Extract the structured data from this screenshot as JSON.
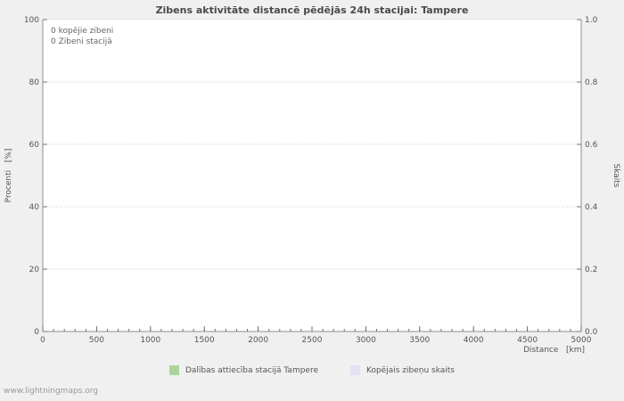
{
  "page": {
    "watermark": "www.lightningmaps.org"
  },
  "chart_data": {
    "type": "line",
    "title": "Zibens aktivitāte distancē pēdējās 24h stacijai: Tampere",
    "xlabel": "Distance   [km]",
    "ylabel_left": "Procenti   [%]",
    "ylabel_right": "Skaits",
    "xlim": [
      0,
      5000
    ],
    "x_ticks": [
      0,
      500,
      1000,
      1500,
      2000,
      2500,
      3000,
      3500,
      4000,
      4500,
      5000
    ],
    "x_minor_step": 100,
    "ylim_left": [
      0,
      100
    ],
    "y_ticks_left": [
      0,
      20,
      40,
      60,
      80,
      100
    ],
    "ylim_right": [
      0.0,
      1.0
    ],
    "y_ticks_right": [
      0.0,
      0.2,
      0.4,
      0.6,
      0.8,
      1.0
    ],
    "grid": true,
    "legend_position": "bottom",
    "annotations": [
      "0 kopējie zibeni",
      "0 Zibeni stacijā"
    ],
    "series": [
      {
        "name": "Dalības attiecība stacijā Tampere",
        "color": "#abd49c",
        "values": []
      },
      {
        "name": "Kopējais zibeņu skaits",
        "color": "#e2e1f5",
        "values": []
      }
    ]
  }
}
